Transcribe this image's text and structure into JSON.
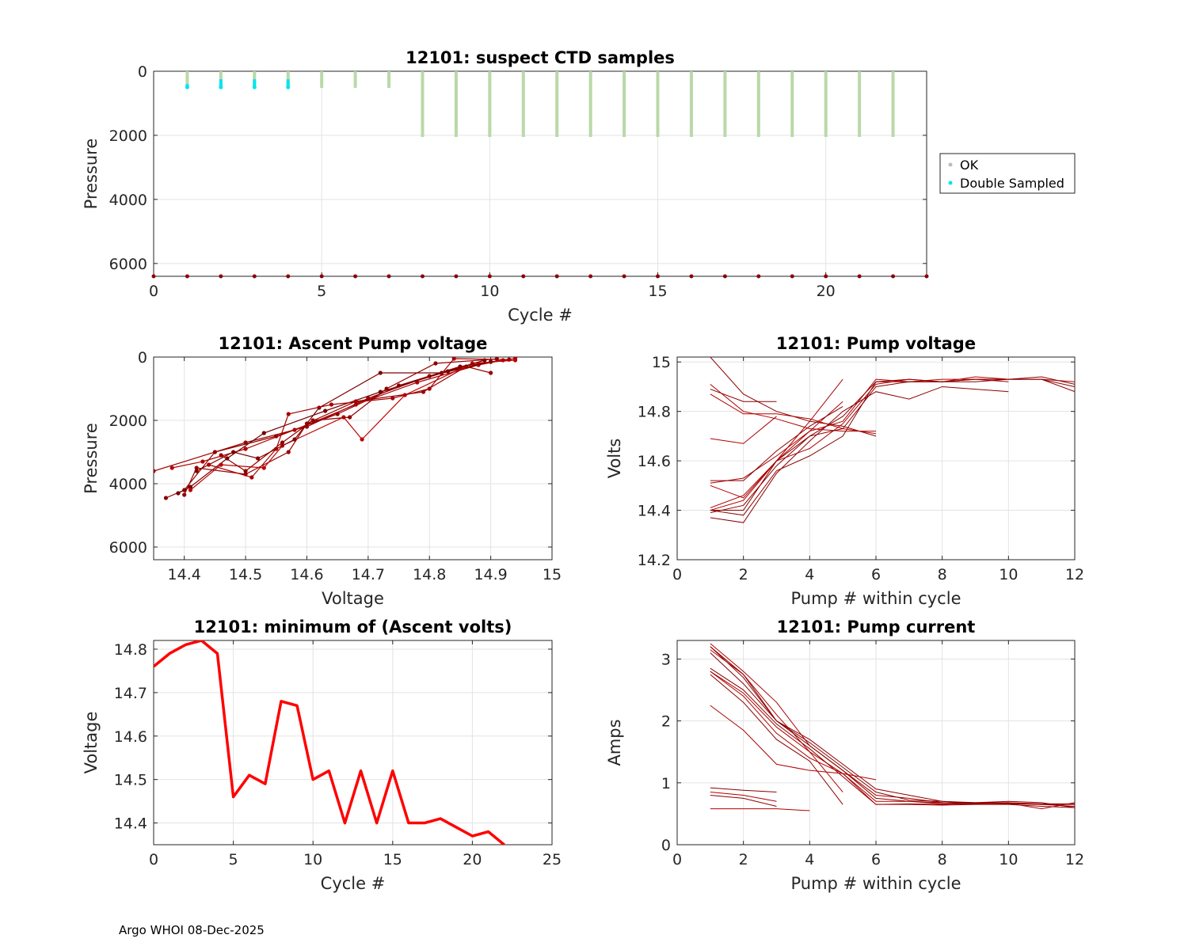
{
  "footer": "Argo WHOI 08-Dec-2025",
  "chart_data": [
    {
      "id": "ctd",
      "type": "scatter",
      "title": "12101: suspect CTD samples",
      "xlabel": "Cycle #",
      "ylabel": "Pressure",
      "xlim": [
        0,
        23
      ],
      "ylim": [
        6400,
        0
      ],
      "xticks": [
        0,
        5,
        10,
        15,
        20
      ],
      "yticks": [
        0,
        2000,
        4000,
        6000
      ],
      "legend": {
        "position": "outside-right",
        "entries": [
          {
            "label": "OK",
            "color": "#bbbbbb"
          },
          {
            "label": "Double Sampled",
            "color": "#00e5ee"
          }
        ]
      },
      "ok_profiles": [
        {
          "cycle": 1,
          "max_p": 450
        },
        {
          "cycle": 2,
          "max_p": 500
        },
        {
          "cycle": 3,
          "max_p": 500
        },
        {
          "cycle": 4,
          "max_p": 500
        },
        {
          "cycle": 5,
          "max_p": 520
        },
        {
          "cycle": 6,
          "max_p": 520
        },
        {
          "cycle": 7,
          "max_p": 520
        },
        {
          "cycle": 8,
          "max_p": 2050
        },
        {
          "cycle": 9,
          "max_p": 2050
        },
        {
          "cycle": 10,
          "max_p": 2050
        },
        {
          "cycle": 11,
          "max_p": 2050
        },
        {
          "cycle": 12,
          "max_p": 2050
        },
        {
          "cycle": 13,
          "max_p": 2050
        },
        {
          "cycle": 14,
          "max_p": 2050
        },
        {
          "cycle": 15,
          "max_p": 2050
        },
        {
          "cycle": 16,
          "max_p": 2050
        },
        {
          "cycle": 17,
          "max_p": 2050
        },
        {
          "cycle": 18,
          "max_p": 2050
        },
        {
          "cycle": 19,
          "max_p": 2050
        },
        {
          "cycle": 20,
          "max_p": 2050
        },
        {
          "cycle": 21,
          "max_p": 2050
        },
        {
          "cycle": 22,
          "max_p": 2050
        }
      ],
      "double_sampled": [
        {
          "cycle": 1,
          "p_from": 400,
          "p_to": 500
        },
        {
          "cycle": 2,
          "p_from": 250,
          "p_to": 500
        },
        {
          "cycle": 3,
          "p_from": 250,
          "p_to": 500
        },
        {
          "cycle": 4,
          "p_from": 250,
          "p_to": 500
        }
      ],
      "bottom_marker_cycles": [
        0,
        1,
        2,
        3,
        4,
        5,
        6,
        7,
        8,
        9,
        10,
        11,
        12,
        13,
        14,
        15,
        16,
        17,
        18,
        19,
        20,
        21,
        22,
        23
      ],
      "bottom_marker_pressure": 6400
    },
    {
      "id": "ascent_volt",
      "type": "scatter",
      "title": "12101: Ascent Pump voltage",
      "xlabel": "Voltage",
      "ylabel": "Pressure",
      "xlim": [
        14.35,
        15
      ],
      "ylim": [
        6400,
        0
      ],
      "xticks": [
        14.4,
        14.5,
        14.6,
        14.7,
        14.8,
        14.9,
        15
      ],
      "yticks": [
        0,
        2000,
        4000,
        6000
      ],
      "profiles": [
        [
          [
            14.35,
            3600
          ],
          [
            14.5,
            2700
          ],
          [
            14.6,
            2200
          ],
          [
            14.7,
            1300
          ],
          [
            14.8,
            600
          ],
          [
            14.9,
            150
          ],
          [
            14.94,
            50
          ]
        ],
        [
          [
            14.37,
            4450
          ],
          [
            14.4,
            4200
          ],
          [
            14.45,
            3000
          ],
          [
            14.55,
            2500
          ],
          [
            14.65,
            1800
          ],
          [
            14.75,
            900
          ],
          [
            14.85,
            300
          ],
          [
            14.93,
            80
          ]
        ],
        [
          [
            14.38,
            3500
          ],
          [
            14.43,
            3300
          ],
          [
            14.5,
            2900
          ],
          [
            14.58,
            2300
          ],
          [
            14.68,
            1500
          ],
          [
            14.78,
            800
          ],
          [
            14.88,
            250
          ],
          [
            14.92,
            100
          ]
        ],
        [
          [
            14.39,
            4300
          ],
          [
            14.41,
            4100
          ],
          [
            14.47,
            3200
          ],
          [
            14.53,
            2400
          ],
          [
            14.63,
            1700
          ],
          [
            14.72,
            1100
          ],
          [
            14.83,
            450
          ],
          [
            14.9,
            150
          ]
        ],
        [
          [
            14.4,
            4350
          ],
          [
            14.42,
            3500
          ],
          [
            14.5,
            3700
          ],
          [
            14.57,
            3000
          ],
          [
            14.6,
            2100
          ],
          [
            14.68,
            1400
          ],
          [
            14.79,
            1100
          ],
          [
            14.86,
            300
          ],
          [
            14.9,
            500
          ]
        ],
        [
          [
            14.41,
            4200
          ],
          [
            14.46,
            3400
          ],
          [
            14.53,
            3500
          ],
          [
            14.56,
            2800
          ],
          [
            14.66,
            1900
          ],
          [
            14.69,
            2600
          ],
          [
            14.76,
            1200
          ],
          [
            14.87,
            200
          ],
          [
            14.94,
            100
          ]
        ],
        [
          [
            14.42,
            3600
          ],
          [
            14.48,
            3000
          ],
          [
            14.52,
            3200
          ],
          [
            14.58,
            2600
          ],
          [
            14.62,
            1600
          ],
          [
            14.72,
            500
          ],
          [
            14.82,
            500
          ],
          [
            14.89,
            100
          ]
        ],
        [
          [
            14.44,
            3400
          ],
          [
            14.51,
            3800
          ],
          [
            14.55,
            2900
          ],
          [
            14.57,
            1800
          ],
          [
            14.64,
            1500
          ],
          [
            14.74,
            1300
          ],
          [
            14.8,
            1000
          ],
          [
            14.84,
            50
          ],
          [
            14.93,
            80
          ]
        ],
        [
          [
            14.46,
            3100
          ],
          [
            14.5,
            3600
          ],
          [
            14.56,
            2700
          ],
          [
            14.61,
            2000
          ],
          [
            14.67,
            1900
          ],
          [
            14.73,
            1000
          ],
          [
            14.81,
            200
          ],
          [
            14.91,
            60
          ]
        ]
      ]
    },
    {
      "id": "pump_volt",
      "type": "line",
      "title": "12101: Pump voltage",
      "xlabel": "Pump # within cycle",
      "ylabel": "Volts",
      "xlim": [
        0,
        12
      ],
      "ylim": [
        14.2,
        15.02
      ],
      "xticks": [
        0,
        2,
        4,
        6,
        8,
        10,
        12
      ],
      "yticks": [
        14.2,
        14.4,
        14.6,
        14.8,
        15
      ],
      "series": [
        [
          14.4,
          14.44,
          14.6,
          14.72,
          14.76,
          14.93,
          14.92,
          14.93,
          14.93,
          14.92
        ],
        [
          14.39,
          14.42,
          14.58,
          14.7,
          14.78,
          14.92,
          14.92,
          14.92,
          14.93,
          14.93,
          14.94,
          14.91
        ],
        [
          14.41,
          14.46,
          14.6,
          14.65,
          14.75,
          14.91,
          14.93,
          14.92,
          14.94,
          14.93,
          14.93,
          14.92
        ],
        [
          14.37,
          14.35,
          14.55,
          14.68,
          14.8,
          14.88,
          14.85,
          14.9,
          14.89,
          14.88
        ],
        [
          14.51,
          14.53,
          14.62,
          14.72,
          14.84
        ],
        [
          14.52,
          14.52,
          14.64,
          14.74,
          14.82
        ],
        [
          14.5,
          14.45,
          14.6,
          14.76,
          14.93
        ],
        [
          14.4,
          14.38,
          14.56,
          14.62,
          14.7,
          14.92,
          14.93,
          14.92,
          14.93,
          14.93,
          14.93,
          14.88
        ],
        [
          14.69,
          14.67,
          14.78
        ],
        [
          14.89,
          14.84,
          14.84
        ],
        [
          14.91,
          14.8,
          14.77,
          14.73,
          14.72,
          14.72
        ],
        [
          15.02,
          14.87,
          14.8,
          14.76,
          14.74,
          14.7
        ],
        [
          14.87,
          14.79,
          14.79,
          14.77,
          14.73,
          14.71
        ],
        [
          14.4,
          14.4,
          14.6,
          14.7,
          14.73,
          14.9,
          14.92,
          14.92,
          14.92,
          14.93,
          14.93,
          14.9
        ]
      ]
    },
    {
      "id": "min_volt",
      "type": "line",
      "title": "12101: minimum of (Ascent volts)",
      "xlabel": "Cycle #",
      "ylabel": "Voltage",
      "xlim": [
        0,
        25
      ],
      "ylim": [
        14.35,
        14.82
      ],
      "xticks": [
        0,
        5,
        10,
        15,
        20,
        25
      ],
      "yticks": [
        14.4,
        14.5,
        14.6,
        14.7,
        14.8
      ],
      "x": [
        0,
        1,
        2,
        3,
        4,
        5,
        6,
        7,
        8,
        9,
        10,
        11,
        12,
        13,
        14,
        15,
        16,
        17,
        18,
        19,
        20,
        21,
        22
      ],
      "values": [
        14.76,
        14.79,
        14.81,
        14.82,
        14.79,
        14.46,
        14.51,
        14.49,
        14.68,
        14.67,
        14.5,
        14.52,
        14.4,
        14.52,
        14.4,
        14.52,
        14.4,
        14.4,
        14.41,
        14.39,
        14.37,
        14.38,
        14.35
      ]
    },
    {
      "id": "pump_current",
      "type": "line",
      "title": "12101: Pump current",
      "xlabel": "Pump # within cycle",
      "ylabel": "Amps",
      "xlim": [
        0,
        12
      ],
      "ylim": [
        0,
        3.3
      ],
      "xticks": [
        0,
        2,
        4,
        6,
        8,
        10,
        12
      ],
      "yticks": [
        0,
        1,
        2,
        3
      ],
      "series": [
        [
          3.25,
          2.8,
          2.3,
          1.6,
          1.2,
          0.8,
          0.75,
          0.68,
          0.68,
          0.68,
          0.66,
          0.66
        ],
        [
          3.2,
          2.7,
          2.0,
          1.65,
          1.25,
          0.85,
          0.72,
          0.7,
          0.67,
          0.66,
          0.65,
          0.62
        ],
        [
          3.15,
          2.75,
          2.1,
          1.5,
          1.15,
          0.7,
          0.7,
          0.66,
          0.66,
          0.68
        ],
        [
          2.85,
          2.5,
          1.95,
          1.55,
          1.1,
          0.65,
          0.65,
          0.64,
          0.65,
          0.65,
          0.62,
          0.6
        ],
        [
          2.8,
          2.4,
          1.8,
          1.4,
          1.15,
          0.65,
          0.66,
          0.65,
          0.67,
          0.67,
          0.58,
          0.68
        ],
        [
          2.75,
          2.3,
          1.7,
          1.35,
          0.65
        ],
        [
          2.8,
          2.45,
          1.9,
          1.5,
          0.85
        ],
        [
          3.1,
          2.6,
          2.0,
          1.7,
          1.3,
          0.9,
          0.8,
          0.7,
          0.68,
          0.7,
          0.68,
          0.6
        ],
        [
          2.25,
          1.85,
          1.3,
          1.2,
          1.15,
          1.05
        ],
        [
          0.92,
          0.88,
          0.85
        ],
        [
          0.85,
          0.8,
          0.7
        ],
        [
          0.8,
          0.75,
          0.62
        ],
        [
          0.58,
          0.58,
          0.58,
          0.55
        ],
        [
          3.2,
          2.75,
          2.0,
          1.6,
          1.2,
          0.75,
          0.7,
          0.68,
          0.66,
          0.67,
          0.65,
          0.65
        ]
      ]
    }
  ]
}
